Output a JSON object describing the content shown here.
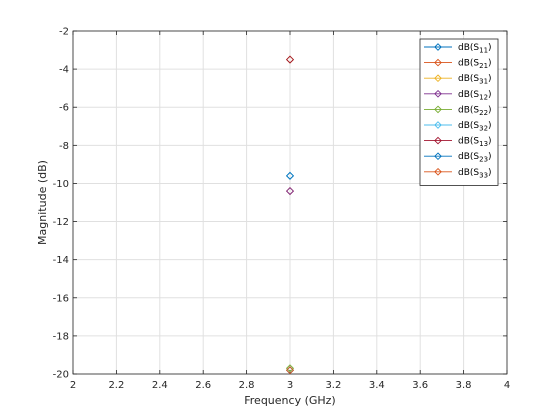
{
  "chart_data": {
    "type": "scatter",
    "title": "",
    "xlabel": "Frequency (GHz)",
    "ylabel": "Magnitude (dB)",
    "xlim": [
      2,
      4
    ],
    "ylim": [
      -20,
      -2
    ],
    "xticks": [
      2,
      2.2,
      2.4,
      2.6,
      2.8,
      3,
      3.2,
      3.4,
      3.6,
      3.8,
      4
    ],
    "yticks": [
      -2,
      -4,
      -6,
      -8,
      -10,
      -12,
      -14,
      -16,
      -18,
      -20
    ],
    "xtick_labels": [
      "2",
      "2.2",
      "2.4",
      "2.6",
      "2.8",
      "3",
      "3.2",
      "3.4",
      "3.6",
      "3.8",
      "4"
    ],
    "ytick_labels": [
      "-2",
      "-4",
      "-6",
      "-8",
      "-10",
      "-12",
      "-14",
      "-16",
      "-18",
      "-20"
    ],
    "grid": true,
    "legend_position": "top-right",
    "marker": "diamond",
    "series": [
      {
        "name": "dB(S11)",
        "base": "dB(S",
        "sub": "11",
        "color": "#0072BD",
        "x": [
          3
        ],
        "y": [
          -19.8
        ]
      },
      {
        "name": "dB(S21)",
        "base": "dB(S",
        "sub": "21",
        "color": "#D95319",
        "x": [
          3
        ],
        "y": [
          -10.4
        ]
      },
      {
        "name": "dB(S31)",
        "base": "dB(S",
        "sub": "31",
        "color": "#EDB120",
        "x": [
          3
        ],
        "y": [
          -3.5
        ]
      },
      {
        "name": "dB(S12)",
        "base": "dB(S",
        "sub": "12",
        "color": "#7E2F8E",
        "x": [
          3
        ],
        "y": [
          -10.4
        ]
      },
      {
        "name": "dB(S22)",
        "base": "dB(S",
        "sub": "22",
        "color": "#77AC30",
        "x": [
          3
        ],
        "y": [
          -19.7
        ]
      },
      {
        "name": "dB(S32)",
        "base": "dB(S",
        "sub": "32",
        "color": "#4DBEEE",
        "x": [
          3
        ],
        "y": [
          -9.6
        ]
      },
      {
        "name": "dB(S13)",
        "base": "dB(S",
        "sub": "13",
        "color": "#A2142F",
        "x": [
          3
        ],
        "y": [
          -3.5
        ]
      },
      {
        "name": "dB(S23)",
        "base": "dB(S",
        "sub": "23",
        "color": "#0072BD",
        "x": [
          3
        ],
        "y": [
          -9.6
        ]
      },
      {
        "name": "dB(S33)",
        "base": "dB(S",
        "sub": "33",
        "color": "#D95319",
        "x": [
          3
        ],
        "y": [
          -19.8
        ]
      }
    ]
  }
}
